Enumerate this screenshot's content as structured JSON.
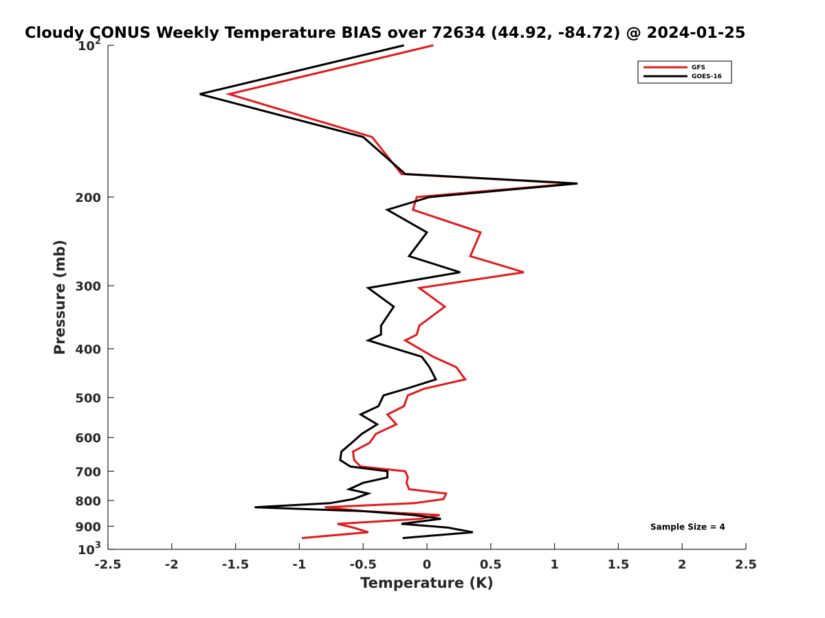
{
  "chart_data": {
    "type": "line",
    "title": "Cloudy CONUS Weekly Temperature BIAS over 72634 (44.92, -84.72) @ 2024-01-25",
    "xlabel": "Temperature (K)",
    "ylabel": "Pressure (mb)",
    "xlim": [
      -2.5,
      2.5
    ],
    "ylim": [
      100,
      1000
    ],
    "yscale": "log",
    "y_reversed": true,
    "grid": false,
    "legend_position": "top-right",
    "x_ticks": [
      {
        "value": -2.5,
        "label": "-2.5"
      },
      {
        "value": -2,
        "label": "-2"
      },
      {
        "value": -1.5,
        "label": "-1.5"
      },
      {
        "value": -1,
        "label": "-1"
      },
      {
        "value": -0.5,
        "label": "-0.5"
      },
      {
        "value": 0,
        "label": "0"
      },
      {
        "value": 0.5,
        "label": "0.5"
      },
      {
        "value": 1,
        "label": "1"
      },
      {
        "value": 1.5,
        "label": "1.5"
      },
      {
        "value": 2,
        "label": "2"
      },
      {
        "value": 2.5,
        "label": "2.5"
      }
    ],
    "y_ticks": [
      {
        "value": 100,
        "base": "10",
        "exp": "2"
      },
      {
        "value": 200,
        "label": "200"
      },
      {
        "value": 300,
        "label": "300"
      },
      {
        "value": 400,
        "label": "400"
      },
      {
        "value": 500,
        "label": "500"
      },
      {
        "value": 600,
        "label": "600"
      },
      {
        "value": 700,
        "label": "700"
      },
      {
        "value": 800,
        "label": "800"
      },
      {
        "value": 900,
        "label": "900"
      },
      {
        "value": 1000,
        "base": "10",
        "exp": "3"
      }
    ],
    "series": [
      {
        "name": "GFS",
        "color": "#e31a1c",
        "points": [
          [
            0.05,
            100
          ],
          [
            -1.55,
            125
          ],
          [
            -0.43,
            152
          ],
          [
            -0.2,
            180
          ],
          [
            1.15,
            188
          ],
          [
            -0.08,
            200
          ],
          [
            -0.11,
            212
          ],
          [
            0.42,
            235
          ],
          [
            0.34,
            262
          ],
          [
            0.76,
            282
          ],
          [
            -0.06,
            303
          ],
          [
            0.14,
            330
          ],
          [
            -0.06,
            360
          ],
          [
            -0.08,
            375
          ],
          [
            -0.17,
            385
          ],
          [
            0.05,
            415
          ],
          [
            0.23,
            435
          ],
          [
            0.3,
            460
          ],
          [
            -0.02,
            480
          ],
          [
            -0.15,
            495
          ],
          [
            -0.18,
            520
          ],
          [
            -0.31,
            540
          ],
          [
            -0.24,
            565
          ],
          [
            -0.4,
            590
          ],
          [
            -0.45,
            615
          ],
          [
            -0.58,
            640
          ],
          [
            -0.57,
            665
          ],
          [
            -0.52,
            685
          ],
          [
            -0.17,
            700
          ],
          [
            -0.15,
            720
          ],
          [
            -0.16,
            738
          ],
          [
            -0.14,
            760
          ],
          [
            0.15,
            775
          ],
          [
            0.13,
            795
          ],
          [
            -0.1,
            810
          ],
          [
            -0.8,
            825
          ],
          [
            -0.5,
            840
          ],
          [
            0.1,
            855
          ],
          [
            -0.05,
            870
          ],
          [
            -0.7,
            890
          ],
          [
            -0.58,
            905
          ],
          [
            -0.46,
            925
          ],
          [
            -0.98,
            950
          ]
        ]
      },
      {
        "name": "GOES-16",
        "color": "#000000",
        "points": [
          [
            -0.18,
            100
          ],
          [
            -1.78,
            125
          ],
          [
            -0.5,
            152
          ],
          [
            -0.17,
            180
          ],
          [
            1.18,
            188
          ],
          [
            0.02,
            200
          ],
          [
            -0.31,
            212
          ],
          [
            0.0,
            235
          ],
          [
            -0.14,
            262
          ],
          [
            0.26,
            282
          ],
          [
            -0.46,
            303
          ],
          [
            -0.26,
            330
          ],
          [
            -0.36,
            360
          ],
          [
            -0.36,
            375
          ],
          [
            -0.46,
            385
          ],
          [
            -0.04,
            415
          ],
          [
            0.02,
            435
          ],
          [
            0.07,
            460
          ],
          [
            -0.16,
            480
          ],
          [
            -0.34,
            495
          ],
          [
            -0.38,
            520
          ],
          [
            -0.52,
            540
          ],
          [
            -0.39,
            565
          ],
          [
            -0.51,
            590
          ],
          [
            -0.59,
            615
          ],
          [
            -0.67,
            640
          ],
          [
            -0.68,
            665
          ],
          [
            -0.6,
            685
          ],
          [
            -0.31,
            700
          ],
          [
            -0.31,
            720
          ],
          [
            -0.5,
            738
          ],
          [
            -0.61,
            760
          ],
          [
            -0.46,
            775
          ],
          [
            -0.58,
            795
          ],
          [
            -0.76,
            810
          ],
          [
            -1.35,
            825
          ],
          [
            -0.5,
            840
          ],
          [
            -0.1,
            855
          ],
          [
            0.11,
            870
          ],
          [
            -0.2,
            890
          ],
          [
            0.16,
            905
          ],
          [
            0.36,
            925
          ],
          [
            -0.19,
            950
          ]
        ]
      }
    ],
    "annotations": [
      {
        "text": "Sample Size = 4",
        "x": 1.75,
        "y": 900
      }
    ]
  }
}
